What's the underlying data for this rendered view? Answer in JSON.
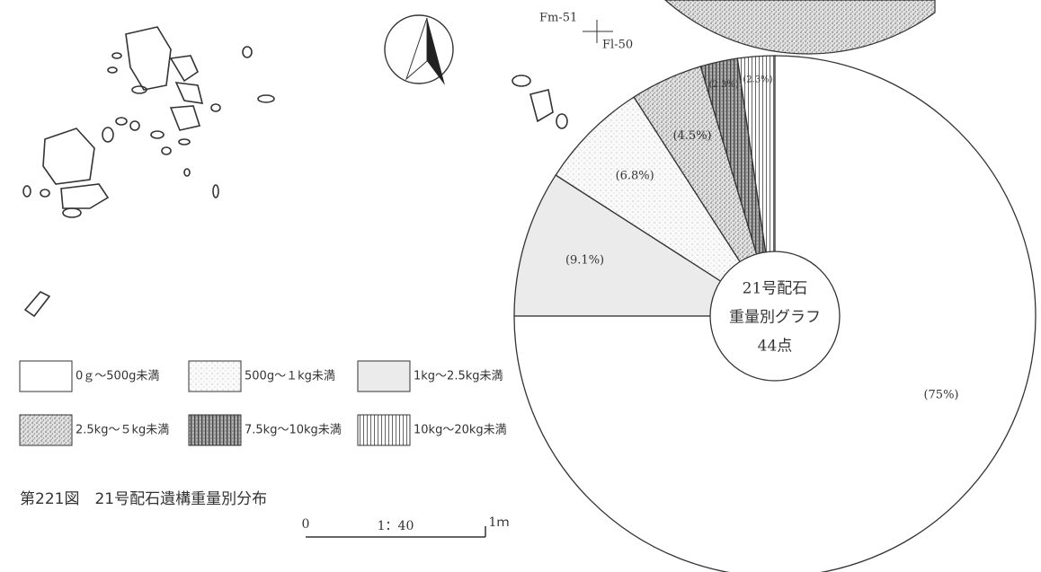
{
  "chart_data": {
    "type": "pie",
    "title": "21号配石",
    "subtitle": "重量別グラフ",
    "count_label": "44点",
    "series": [
      {
        "name": "0ｇ～500g未満",
        "value": 75,
        "value_label": "(75%)"
      },
      {
        "name": "500g～１kg未満",
        "value": 6.8,
        "value_label": "(6.8%)"
      },
      {
        "name": "1kg～2.5kg未満",
        "value": 9.1,
        "value_label": "(9.1%)"
      },
      {
        "name": "2.5kg～５kg未満",
        "value": 4.5,
        "value_label": "(4.5%)"
      },
      {
        "name": "7.5kg～10kg未満",
        "value": 2.3,
        "value_label": "(2.3%)"
      },
      {
        "name": "10kg～20kg未満",
        "value": 2.3,
        "value_label": "(2.3%)"
      }
    ]
  },
  "figure": {
    "caption": "第221図　21号配石遺構重量別分布",
    "scale": {
      "start": "0",
      "ratio": "1：40",
      "end": "1ｍ"
    },
    "grid_labels": [
      "Fm-51",
      "Fl-50"
    ]
  }
}
